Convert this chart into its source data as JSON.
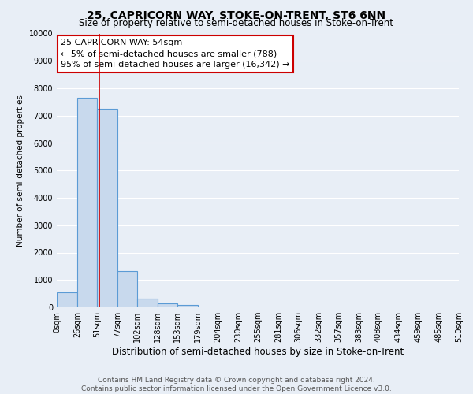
{
  "title": "25, CAPRICORN WAY, STOKE-ON-TRENT, ST6 6NN",
  "subtitle": "Size of property relative to semi-detached houses in Stoke-on-Trent",
  "xlabel": "Distribution of semi-detached houses by size in Stoke-on-Trent",
  "ylabel": "Number of semi-detached properties",
  "footer_line1": "Contains HM Land Registry data © Crown copyright and database right 2024.",
  "footer_line2": "Contains public sector information licensed under the Open Government Licence v3.0.",
  "bin_edges": [
    0,
    26,
    51,
    77,
    102,
    128,
    153,
    179,
    204,
    230,
    255,
    281,
    306,
    332,
    357,
    383,
    408,
    434,
    459,
    485,
    510
  ],
  "bar_heights": [
    550,
    7650,
    7250,
    1320,
    330,
    150,
    100,
    0,
    0,
    0,
    0,
    0,
    0,
    0,
    0,
    0,
    0,
    0,
    0,
    0
  ],
  "bar_color": "#c8d9ed",
  "bar_edgecolor": "#5b9bd5",
  "bar_linewidth": 0.8,
  "property_line_x": 54,
  "property_line_color": "#cc0000",
  "ylim": [
    0,
    10000
  ],
  "yticks": [
    0,
    1000,
    2000,
    3000,
    4000,
    5000,
    6000,
    7000,
    8000,
    9000,
    10000
  ],
  "annotation_text_line1": "25 CAPRICORN WAY: 54sqm",
  "annotation_text_line2": "← 5% of semi-detached houses are smaller (788)",
  "annotation_text_line3": "95% of semi-detached houses are larger (16,342) →",
  "bg_color": "#e8eef6",
  "plot_bg_color": "#e8eef6",
  "grid_color": "#ffffff",
  "title_fontsize": 10,
  "subtitle_fontsize": 8.5,
  "xlabel_fontsize": 8.5,
  "ylabel_fontsize": 7.5,
  "tick_label_fontsize": 7,
  "footer_fontsize": 6.5,
  "ann_fontsize": 8
}
